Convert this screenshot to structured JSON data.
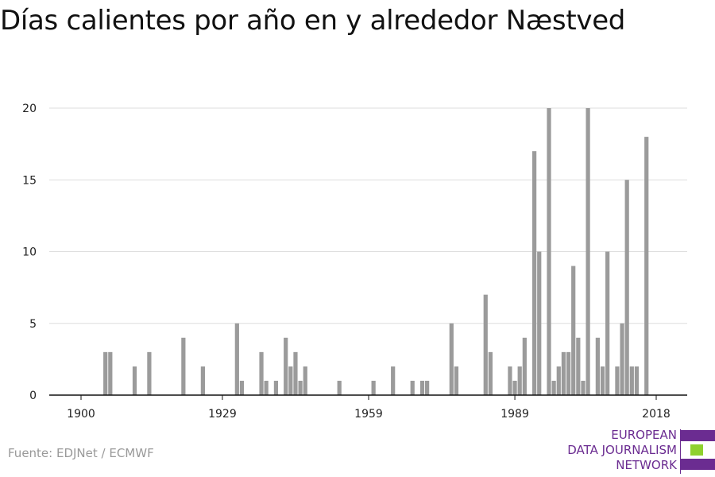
{
  "title": "Días calientes por año en y alrededor Næstved",
  "source": "Fuente: EDJNet / ECMWF",
  "logo": {
    "lines": [
      "EUROPEAN",
      "DATA JOURNALISM",
      "NETWORK"
    ]
  },
  "colors": {
    "bar": "#9b9b9b",
    "grid": "#dddddd",
    "axis": "#111111",
    "logo_purple": "#6b2c91",
    "logo_green": "#8fd12e"
  },
  "chart_data": {
    "type": "bar",
    "title": "Días calientes por año en y alrededor Næstved",
    "xlabel": "",
    "ylabel": "",
    "ylim": [
      0,
      20
    ],
    "y_ticks": [
      0,
      5,
      10,
      15,
      20
    ],
    "x_ticks": [
      1900,
      1929,
      1959,
      1989,
      2018
    ],
    "grid": true,
    "x": [
      1905,
      1906,
      1911,
      1914,
      1921,
      1925,
      1932,
      1933,
      1937,
      1938,
      1940,
      1942,
      1943,
      1944,
      1945,
      1946,
      1953,
      1960,
      1964,
      1968,
      1970,
      1971,
      1976,
      1977,
      1983,
      1984,
      1988,
      1989,
      1990,
      1991,
      1993,
      1994,
      1996,
      1997,
      1998,
      1999,
      2000,
      2001,
      2002,
      2003,
      2004,
      2006,
      2007,
      2008,
      2010,
      2011,
      2012,
      2013,
      2014,
      2016
    ],
    "values": [
      3,
      3,
      2,
      3,
      4,
      2,
      5,
      1,
      3,
      1,
      1,
      4,
      2,
      3,
      1,
      2,
      1,
      1,
      2,
      1,
      1,
      1,
      5,
      2,
      7,
      3,
      2,
      1,
      2,
      4,
      17,
      10,
      20,
      1,
      2,
      3,
      3,
      9,
      4,
      1,
      20,
      4,
      2,
      10,
      2,
      5,
      15,
      2,
      2,
      18
    ]
  }
}
